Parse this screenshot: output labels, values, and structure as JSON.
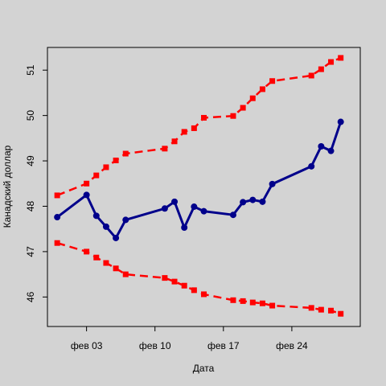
{
  "chart_data": {
    "type": "line",
    "xlabel": "Дата",
    "ylabel": "Канадский доллар",
    "x_ticks": [
      {
        "label": "фев 03",
        "date": "2014-02-03"
      },
      {
        "label": "фев 10",
        "date": "2014-02-10"
      },
      {
        "label": "фев 17",
        "date": "2014-02-17"
      },
      {
        "label": "фев 24",
        "date": "2014-02-24"
      }
    ],
    "y_ticks": [
      46,
      47,
      48,
      49,
      50,
      51
    ],
    "xlim": [
      "2014-01-30",
      "2014-03-03"
    ],
    "ylim": [
      45.35,
      51.5
    ],
    "x": [
      "2014-01-31",
      "2014-02-03",
      "2014-02-04",
      "2014-02-05",
      "2014-02-06",
      "2014-02-07",
      "2014-02-11",
      "2014-02-12",
      "2014-02-13",
      "2014-02-14",
      "2014-02-15",
      "2014-02-18",
      "2014-02-19",
      "2014-02-20",
      "2014-02-21",
      "2014-02-22",
      "2014-02-26",
      "2014-02-27",
      "2014-02-28",
      "2014-03-01"
    ],
    "series": [
      {
        "color": "#00008b",
        "style": "solid",
        "marker": "circle",
        "values": [
          47.76,
          48.25,
          47.79,
          47.55,
          47.3,
          47.7,
          47.95,
          48.1,
          47.53,
          47.99,
          47.89,
          47.81,
          48.09,
          48.14,
          48.1,
          48.49,
          48.88,
          49.32,
          49.22,
          49.86
        ]
      },
      {
        "color": "#ff0000",
        "style": "dashed",
        "marker": "square",
        "values": [
          48.24,
          48.5,
          48.68,
          48.86,
          49.01,
          49.16,
          49.27,
          49.43,
          49.64,
          49.72,
          49.95,
          49.99,
          50.17,
          50.38,
          50.58,
          50.76,
          50.88,
          51.02,
          51.18,
          51.27
        ]
      },
      {
        "color": "#ff0000",
        "style": "dashed",
        "marker": "square",
        "values": [
          47.19,
          47.0,
          46.87,
          46.75,
          46.63,
          46.5,
          46.42,
          46.34,
          46.25,
          46.15,
          46.06,
          45.93,
          45.91,
          45.88,
          45.86,
          45.81,
          45.76,
          45.72,
          45.7,
          45.63
        ]
      }
    ]
  }
}
